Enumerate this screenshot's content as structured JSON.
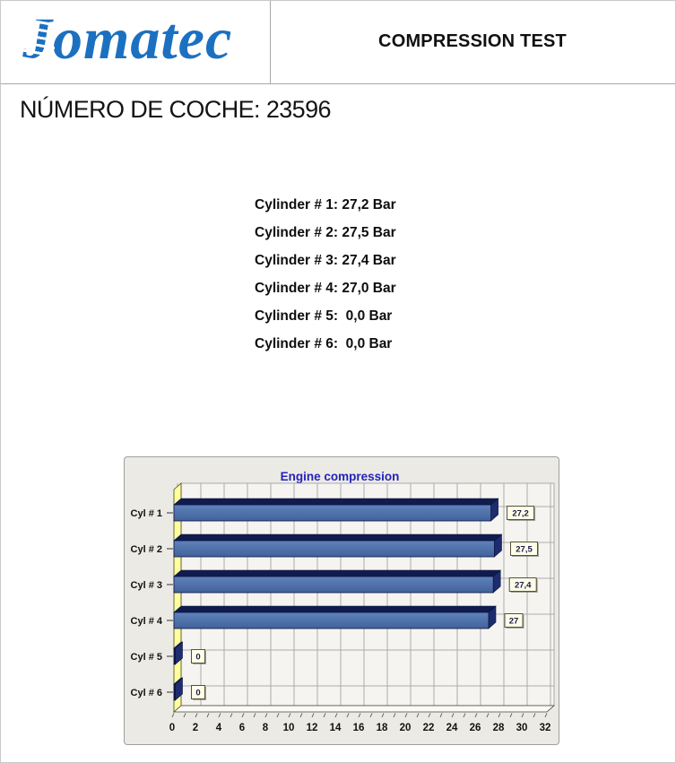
{
  "header": {
    "logo_first_letter": "J",
    "logo_rest": "omatec",
    "logo_color": "#1C70C0",
    "title": "COMPRESSION TEST"
  },
  "car_number": "NÚMERO DE COCHE: 23596",
  "readings": [
    "Cylinder # 1: 27,2 Bar",
    "Cylinder # 2: 27,5 Bar",
    "Cylinder # 3: 27,4 Bar",
    "Cylinder # 4: 27,0 Bar",
    "Cylinder # 5:  0,0 Bar",
    "Cylinder # 6:  0,0 Bar"
  ],
  "chart_data": {
    "type": "bar",
    "orientation": "horizontal",
    "style": "3d",
    "title": "Engine compression",
    "categories": [
      "Cyl # 1",
      "Cyl # 2",
      "Cyl # 3",
      "Cyl # 4",
      "Cyl # 5",
      "Cyl # 6"
    ],
    "values": [
      27.2,
      27.5,
      27.4,
      27.0,
      0,
      0
    ],
    "value_labels": [
      "27,2",
      "27,5",
      "27,4",
      "27",
      "0",
      "0"
    ],
    "xlabel": "",
    "ylabel": "",
    "xlim": [
      0,
      32
    ],
    "x_ticks": [
      0,
      2,
      4,
      6,
      8,
      10,
      12,
      14,
      16,
      18,
      20,
      22,
      24,
      26,
      28,
      30,
      32
    ],
    "grid": true,
    "legend": "none",
    "colors": {
      "title": "#2323BB",
      "panel_bg": "#ECEAE5",
      "plot_bg": "#F5F4F0",
      "grid_line": "#ABABAB",
      "wall": "#FFFF9E",
      "wall_outline": "#44442E",
      "bottom_face": "#FAFAF7",
      "bar_front_light": "#5F82BA",
      "bar_front_dark": "#42629C",
      "bar_top": "#111C4E",
      "bar_side": "#1D2C6E",
      "bar_outline": "#0A1240",
      "value_box_bg": "#FFFFE9",
      "value_box_border": "#55503C",
      "value_text": "#1A1A50",
      "axis_text": "#111111"
    }
  }
}
